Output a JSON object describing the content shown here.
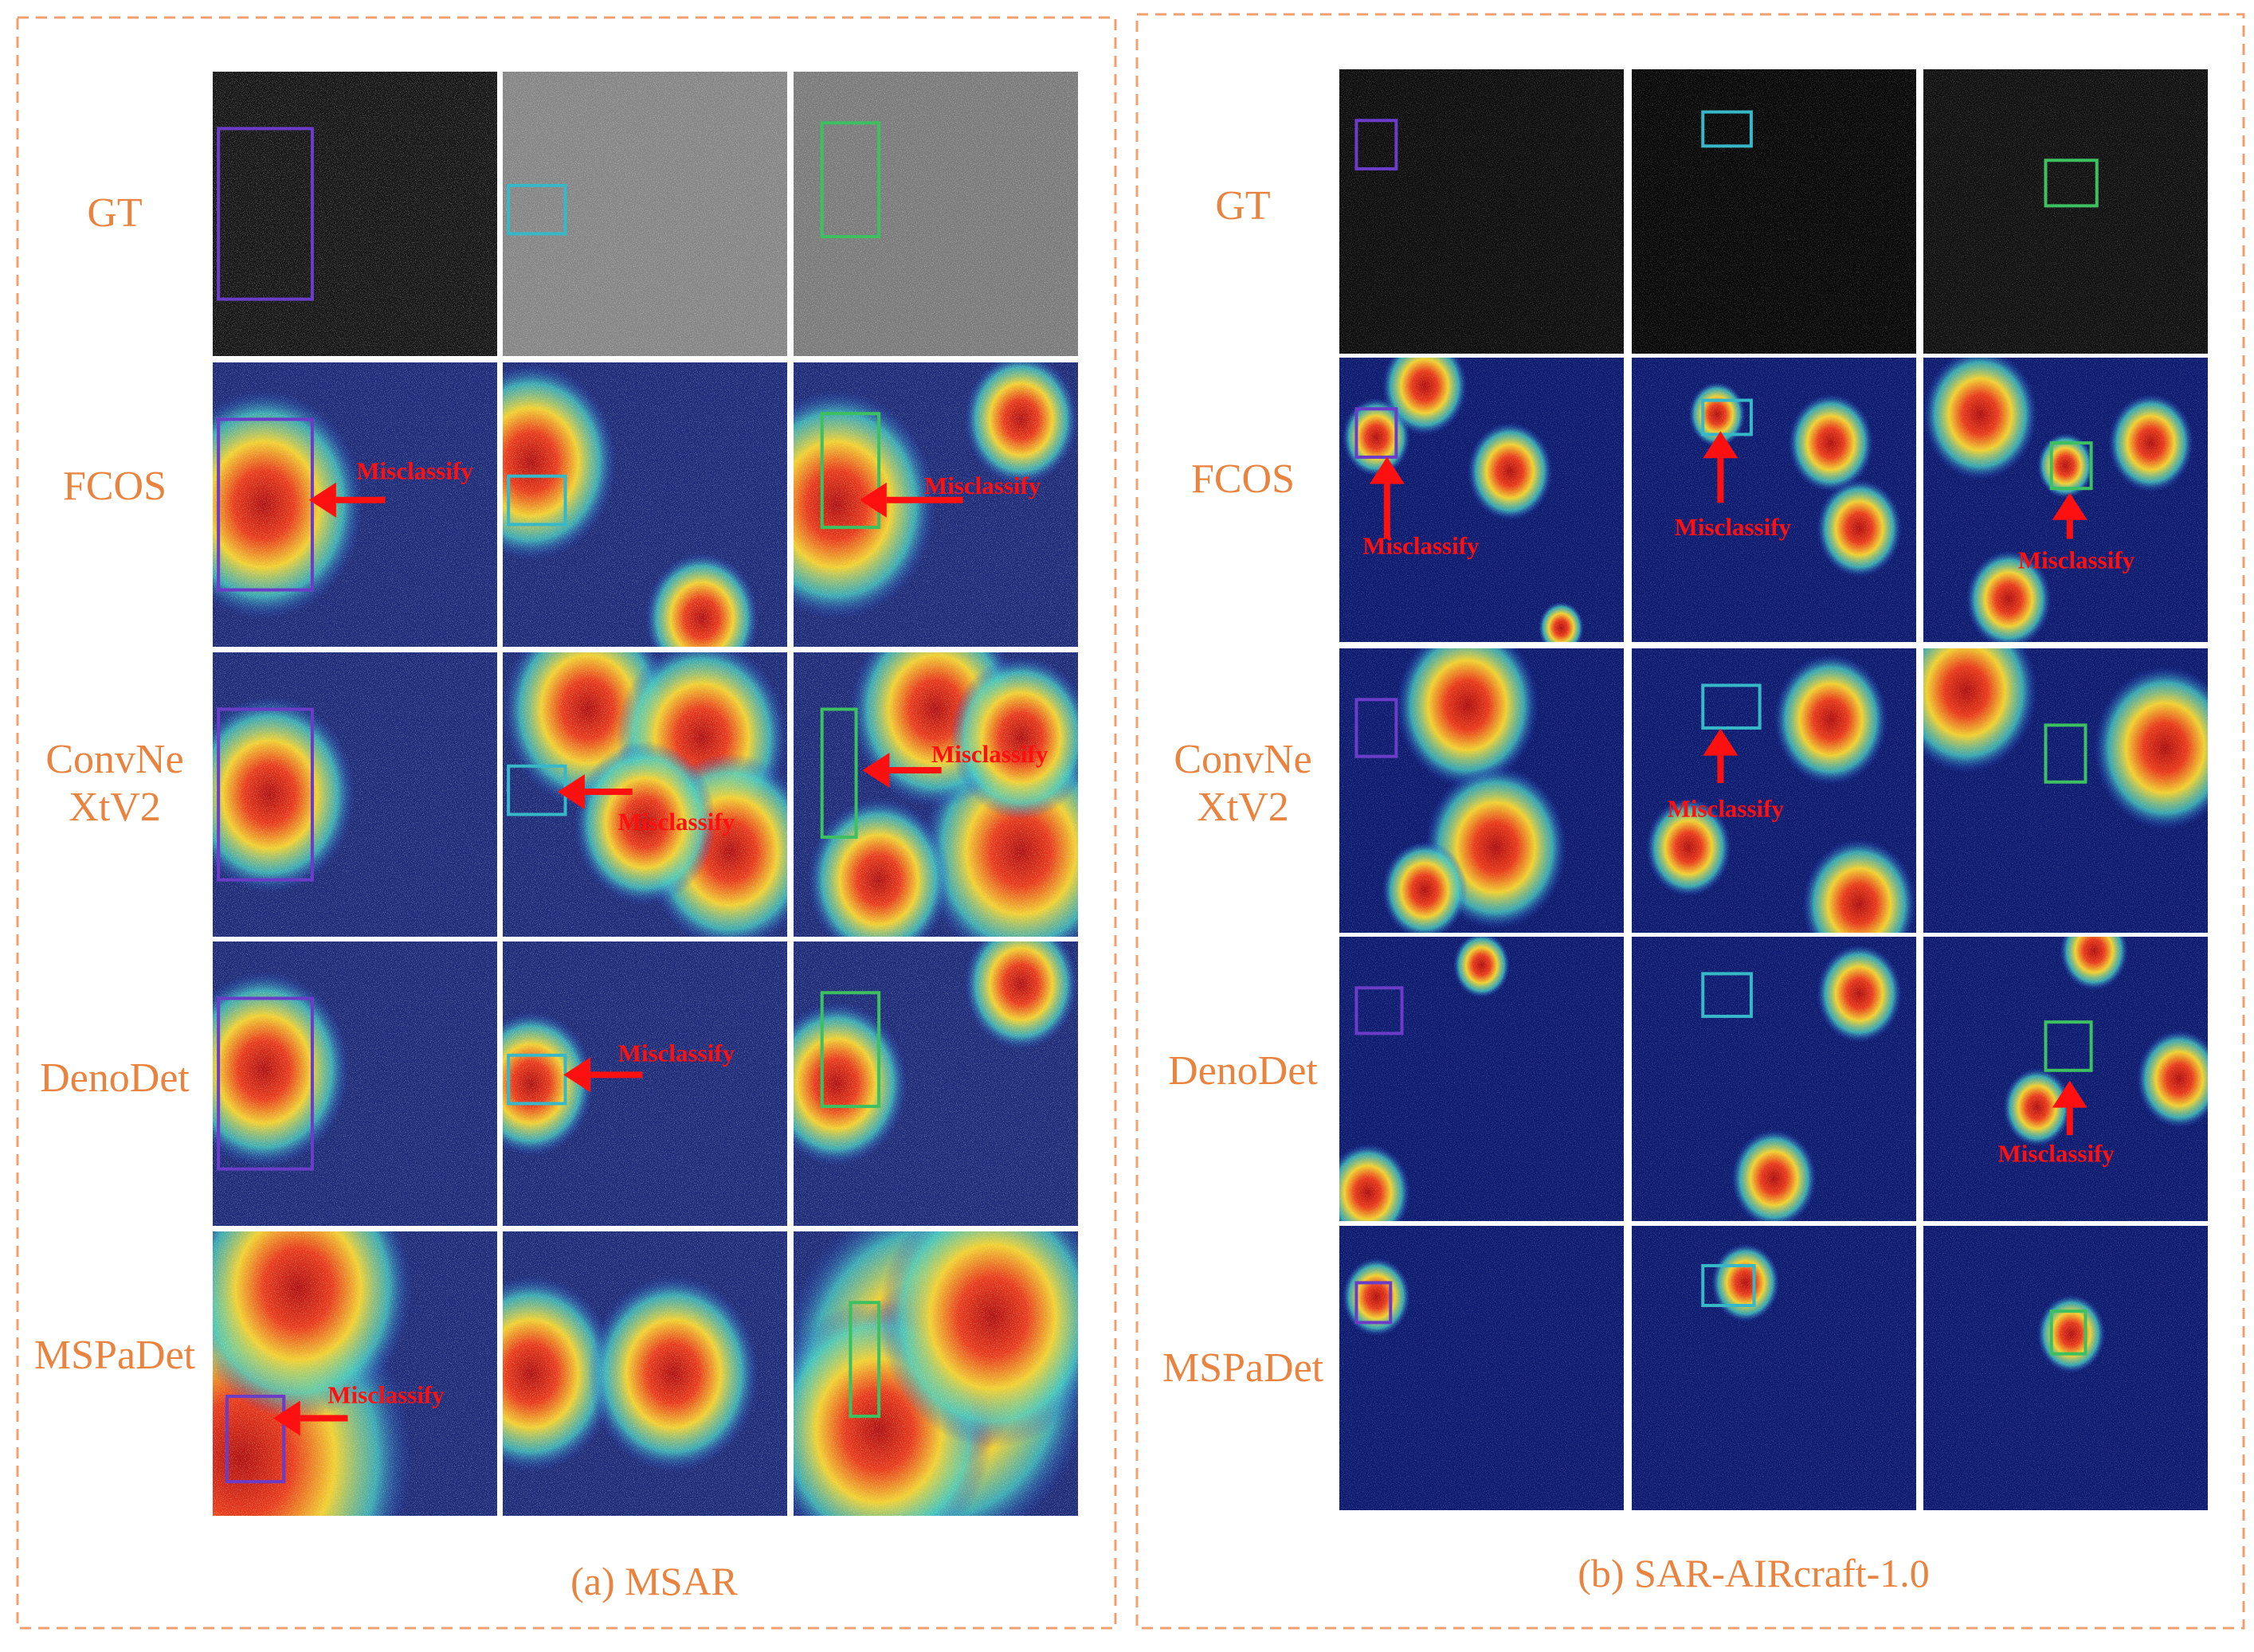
{
  "panels": [
    {
      "caption": "(a) MSAR",
      "rows": [
        {
          "label": [
            "GT"
          ]
        },
        {
          "label": [
            "FCOS"
          ]
        },
        {
          "label": [
            "ConvNe",
            "XtV2"
          ]
        },
        {
          "label": [
            "DenoDet"
          ]
        },
        {
          "label": [
            "MSPaDet"
          ]
        }
      ],
      "annotations": [
        "Misclassify",
        "Misclassify",
        "Misclassify",
        "Misclassify",
        "Misclassify",
        "Misclassify"
      ]
    },
    {
      "caption": "(b) SAR-AIRcraft-1.0",
      "rows": [
        {
          "label": [
            "GT"
          ]
        },
        {
          "label": [
            "FCOS"
          ]
        },
        {
          "label": [
            "ConvNe",
            "XtV2"
          ]
        },
        {
          "label": [
            "DenoDet"
          ]
        },
        {
          "label": [
            "MSPaDet"
          ]
        }
      ],
      "annotations": [
        "Misclassify",
        "Misclassify",
        "Misclassify",
        "Misclassify",
        "Misclassify"
      ]
    }
  ]
}
